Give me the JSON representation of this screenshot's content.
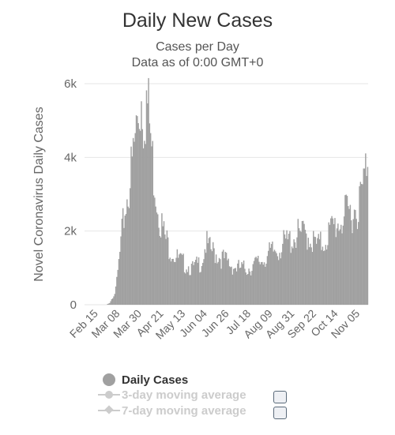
{
  "colors": {
    "series": "#a0a0a0",
    "legend_active_text": "#333333",
    "legend_inactive": "#cccccc",
    "grid": "#e6e6e6"
  },
  "chart_data": {
    "type": "bar",
    "title": "Daily New Cases",
    "subtitle_lines": [
      "Cases per Day",
      "Data as of 0:00 GMT+0"
    ],
    "ylabel": "Novel Coronavirus Daily Cases",
    "xlabel": "",
    "ylim": [
      0,
      6000
    ],
    "yticks": [
      0,
      2000,
      4000,
      6000
    ],
    "ytick_labels": [
      "0",
      "2k",
      "4k",
      "6k"
    ],
    "x_start": "2020-02-15",
    "x_end": "2020-11-17",
    "x_tick_labels": [
      "Feb 15",
      "Mar 08",
      "Mar 30",
      "Apr 21",
      "May 13",
      "Jun 04",
      "Jun 26",
      "Jul 18",
      "Aug 09",
      "Aug 31",
      "Sep 22",
      "Oct 14",
      "Nov 05"
    ],
    "grid": true,
    "legend_position": "bottom",
    "series": [
      {
        "name": "Daily Cases",
        "anchors": [
          [
            "2020-02-15",
            0
          ],
          [
            "2020-03-07",
            0
          ],
          [
            "2020-03-10",
            50
          ],
          [
            "2020-03-13",
            200
          ],
          [
            "2020-03-16",
            350
          ],
          [
            "2020-03-20",
            1200
          ],
          [
            "2020-03-24",
            2100
          ],
          [
            "2020-03-28",
            2700
          ],
          [
            "2020-04-01",
            3300
          ],
          [
            "2020-04-05",
            4200
          ],
          [
            "2020-04-08",
            4700
          ],
          [
            "2020-04-10",
            5000
          ],
          [
            "2020-04-12",
            4600
          ],
          [
            "2020-04-15",
            4900
          ],
          [
            "2020-04-18",
            4300
          ],
          [
            "2020-04-21",
            3400
          ],
          [
            "2020-04-25",
            2600
          ],
          [
            "2020-04-29",
            2000
          ],
          [
            "2020-05-03",
            1600
          ],
          [
            "2020-05-07",
            1400
          ],
          [
            "2020-05-11",
            1250
          ],
          [
            "2020-05-15",
            1100
          ],
          [
            "2020-05-20",
            1000
          ],
          [
            "2020-05-25",
            950
          ],
          [
            "2020-05-30",
            850
          ],
          [
            "2020-06-04",
            950
          ],
          [
            "2020-06-08",
            1050
          ],
          [
            "2020-06-12",
            1450
          ],
          [
            "2020-06-16",
            1300
          ],
          [
            "2020-06-20",
            1250
          ],
          [
            "2020-06-26",
            1150
          ],
          [
            "2020-07-01",
            1050
          ],
          [
            "2020-07-06",
            950
          ],
          [
            "2020-07-12",
            880
          ],
          [
            "2020-07-18",
            860
          ],
          [
            "2020-07-24",
            880
          ],
          [
            "2020-07-30",
            950
          ],
          [
            "2020-08-05",
            1050
          ],
          [
            "2020-08-10",
            1150
          ],
          [
            "2020-08-16",
            1250
          ],
          [
            "2020-08-22",
            1350
          ],
          [
            "2020-08-28",
            1450
          ],
          [
            "2020-09-03",
            1550
          ],
          [
            "2020-09-08",
            1650
          ],
          [
            "2020-09-13",
            1650
          ],
          [
            "2020-09-18",
            1700
          ],
          [
            "2020-09-22",
            1600
          ],
          [
            "2020-09-26",
            1450
          ],
          [
            "2020-09-30",
            1400
          ],
          [
            "2020-10-05",
            1500
          ],
          [
            "2020-10-10",
            1700
          ],
          [
            "2020-10-16",
            1900
          ],
          [
            "2020-10-21",
            2000
          ],
          [
            "2020-10-26",
            2100
          ],
          [
            "2020-10-31",
            2200
          ],
          [
            "2020-11-05",
            2300
          ],
          [
            "2020-11-09",
            2450
          ],
          [
            "2020-11-12",
            2700
          ],
          [
            "2020-11-15",
            3200
          ],
          [
            "2020-11-17",
            3800
          ]
        ]
      }
    ]
  },
  "legend": [
    {
      "label": "Daily Cases",
      "marker": "circle-icon",
      "active": true,
      "checkbox": false
    },
    {
      "label": "3-day moving average",
      "marker": "line-circle-icon",
      "active": false,
      "checkbox": true
    },
    {
      "label": "7-day moving average",
      "marker": "line-diamond-icon",
      "active": false,
      "checkbox": true
    }
  ]
}
